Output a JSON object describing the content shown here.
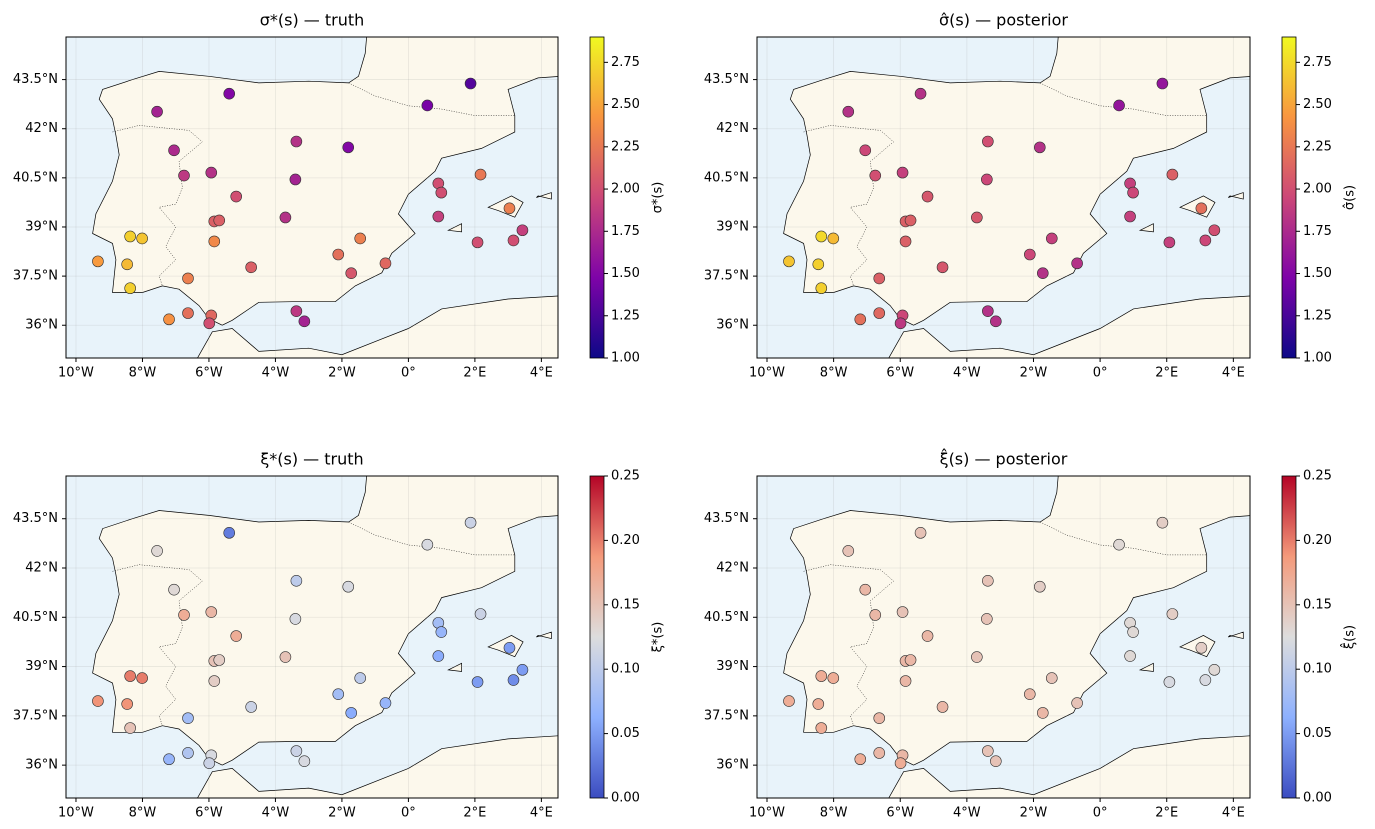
{
  "chart_data": [
    {
      "type": "scatter",
      "title": "σ*(s) — truth",
      "colorbar_label": "σ*(s)",
      "colormap": "plasma",
      "grid": true,
      "xlim": [
        -10.3,
        4.5
      ],
      "ylim": [
        35,
        44.8
      ],
      "xticks": [
        {
          "value": -10,
          "label": "10°W"
        },
        {
          "value": -8,
          "label": "8°W"
        },
        {
          "value": -6,
          "label": "6°W"
        },
        {
          "value": -4,
          "label": "4°W"
        },
        {
          "value": -2,
          "label": "2°W"
        },
        {
          "value": 0,
          "label": "0°"
        },
        {
          "value": 2,
          "label": "2°E"
        },
        {
          "value": 4,
          "label": "4°E"
        }
      ],
      "yticks": [
        {
          "value": 36,
          "label": "36°N"
        },
        {
          "value": 37.5,
          "label": "37.5°N"
        },
        {
          "value": 39,
          "label": "39°N"
        },
        {
          "value": 40.5,
          "label": "40.5°N"
        },
        {
          "value": 42,
          "label": "42°N"
        },
        {
          "value": 43.5,
          "label": "43.5°N"
        }
      ],
      "clim": [
        1,
        2.9
      ],
      "cticks": [
        {
          "value": 1,
          "label": "1.00"
        },
        {
          "value": 1.25,
          "label": "1.25"
        },
        {
          "value": 1.5,
          "label": "1.50"
        },
        {
          "value": 1.75,
          "label": "1.75"
        },
        {
          "value": 2,
          "label": "2.00"
        },
        {
          "value": 2.25,
          "label": "2.25"
        },
        {
          "value": 2.5,
          "label": "2.50"
        },
        {
          "value": 2.75,
          "label": "2.75"
        }
      ],
      "x": [
        1.87,
        -5.39,
        0.57,
        -7.56,
        -3.37,
        -1.81,
        -7.05,
        -6.75,
        -5.93,
        -3.4,
        2.17,
        -5.18,
        0.9,
        0.99,
        0.9,
        -3.7,
        -5.84,
        -5.69,
        3.04,
        -8.37,
        -8.01,
        -5.84,
        -1.45,
        3.43,
        3.16,
        2.08,
        -2.11,
        -9.34,
        -8.46,
        -4.73,
        -0.69,
        -1.72,
        -6.63,
        -8.37,
        -7.2,
        -6.63,
        -5.93,
        -5.99,
        -3.37,
        -3.13
      ],
      "y": [
        43.38,
        43.07,
        42.71,
        42.52,
        41.61,
        41.43,
        41.34,
        40.57,
        40.66,
        40.45,
        40.6,
        39.93,
        40.33,
        40.05,
        39.32,
        39.29,
        39.17,
        39.2,
        39.57,
        38.71,
        38.65,
        38.56,
        38.65,
        38.9,
        38.59,
        38.53,
        38.16,
        37.95,
        37.86,
        37.77,
        37.89,
        37.59,
        37.43,
        37.13,
        36.18,
        36.37,
        36.3,
        36.06,
        36.43,
        36.12
      ],
      "values": [
        1.3,
        1.5,
        1.45,
        1.7,
        1.8,
        1.5,
        1.75,
        1.85,
        1.8,
        1.7,
        2.25,
        2.0,
        2.0,
        2.0,
        1.9,
        1.8,
        2.1,
        2.1,
        2.3,
        2.7,
        2.65,
        2.35,
        2.3,
        1.9,
        2.0,
        2.0,
        2.2,
        2.45,
        2.6,
        2.1,
        2.15,
        2.05,
        2.3,
        2.7,
        2.4,
        2.2,
        2.15,
        2.0,
        1.85,
        1.7
      ]
    },
    {
      "type": "scatter",
      "title": "σ̂(s) — posterior",
      "colorbar_label": "σ̂(s)",
      "colormap": "plasma",
      "grid": true,
      "xlim": [
        -10.3,
        4.5
      ],
      "ylim": [
        35,
        44.8
      ],
      "xticks": [
        {
          "value": -10,
          "label": "10°W"
        },
        {
          "value": -8,
          "label": "8°W"
        },
        {
          "value": -6,
          "label": "6°W"
        },
        {
          "value": -4,
          "label": "4°W"
        },
        {
          "value": -2,
          "label": "2°W"
        },
        {
          "value": 0,
          "label": "0°"
        },
        {
          "value": 2,
          "label": "2°E"
        },
        {
          "value": 4,
          "label": "4°E"
        }
      ],
      "yticks": [
        {
          "value": 36,
          "label": "36°N"
        },
        {
          "value": 37.5,
          "label": "37.5°N"
        },
        {
          "value": 39,
          "label": "39°N"
        },
        {
          "value": 40.5,
          "label": "40.5°N"
        },
        {
          "value": 42,
          "label": "42°N"
        },
        {
          "value": 43.5,
          "label": "43.5°N"
        }
      ],
      "clim": [
        1,
        2.9
      ],
      "cticks": [
        {
          "value": 1,
          "label": "1.00"
        },
        {
          "value": 1.25,
          "label": "1.25"
        },
        {
          "value": 1.5,
          "label": "1.50"
        },
        {
          "value": 1.75,
          "label": "1.75"
        },
        {
          "value": 2,
          "label": "2.00"
        },
        {
          "value": 2.25,
          "label": "2.25"
        },
        {
          "value": 2.5,
          "label": "2.50"
        },
        {
          "value": 2.75,
          "label": "2.75"
        }
      ],
      "x": [
        1.87,
        -5.39,
        0.57,
        -7.56,
        -3.37,
        -1.81,
        -7.05,
        -6.75,
        -5.93,
        -3.4,
        2.17,
        -5.18,
        0.9,
        0.99,
        0.9,
        -3.7,
        -5.84,
        -5.69,
        3.04,
        -8.37,
        -8.01,
        -5.84,
        -1.45,
        3.43,
        3.16,
        2.08,
        -2.11,
        -9.34,
        -8.46,
        -4.73,
        -0.69,
        -1.72,
        -6.63,
        -8.37,
        -7.2,
        -6.63,
        -5.93,
        -5.99,
        -3.37,
        -3.13
      ],
      "y": [
        43.38,
        43.07,
        42.71,
        42.52,
        41.61,
        41.43,
        41.34,
        40.57,
        40.66,
        40.45,
        40.6,
        39.93,
        40.33,
        40.05,
        39.32,
        39.29,
        39.17,
        39.2,
        39.57,
        38.71,
        38.65,
        38.56,
        38.65,
        38.9,
        38.59,
        38.53,
        38.16,
        37.95,
        37.86,
        37.77,
        37.89,
        37.59,
        37.43,
        37.13,
        36.18,
        36.37,
        36.3,
        36.06,
        36.43,
        36.12
      ],
      "values": [
        1.6,
        1.8,
        1.6,
        1.8,
        2.0,
        1.8,
        1.95,
        2.0,
        1.9,
        1.95,
        2.1,
        2.05,
        1.9,
        1.95,
        1.9,
        2.05,
        2.1,
        2.1,
        2.2,
        2.75,
        2.6,
        2.1,
        1.9,
        2.0,
        1.95,
        1.9,
        1.95,
        2.65,
        2.7,
        2.05,
        1.8,
        1.8,
        2.1,
        2.7,
        2.2,
        2.15,
        1.95,
        1.85,
        1.8,
        1.8
      ]
    },
    {
      "type": "scatter",
      "title": "ξ*(s) — truth",
      "colorbar_label": "ξ*(s)",
      "colormap": "coolwarm",
      "grid": true,
      "xlim": [
        -10.3,
        4.5
      ],
      "ylim": [
        35,
        44.8
      ],
      "xticks": [
        {
          "value": -10,
          "label": "10°W"
        },
        {
          "value": -8,
          "label": "8°W"
        },
        {
          "value": -6,
          "label": "6°W"
        },
        {
          "value": -4,
          "label": "4°W"
        },
        {
          "value": -2,
          "label": "2°W"
        },
        {
          "value": 0,
          "label": "0°"
        },
        {
          "value": 2,
          "label": "2°E"
        },
        {
          "value": 4,
          "label": "4°E"
        }
      ],
      "yticks": [
        {
          "value": 36,
          "label": "36°N"
        },
        {
          "value": 37.5,
          "label": "37.5°N"
        },
        {
          "value": 39,
          "label": "39°N"
        },
        {
          "value": 40.5,
          "label": "40.5°N"
        },
        {
          "value": 42,
          "label": "42°N"
        },
        {
          "value": 43.5,
          "label": "43.5°N"
        }
      ],
      "clim": [
        0,
        0.25
      ],
      "cticks": [
        {
          "value": 0,
          "label": "0.00"
        },
        {
          "value": 0.05,
          "label": "0.05"
        },
        {
          "value": 0.1,
          "label": "0.10"
        },
        {
          "value": 0.15,
          "label": "0.15"
        },
        {
          "value": 0.2,
          "label": "0.20"
        },
        {
          "value": 0.25,
          "label": "0.25"
        }
      ],
      "x": [
        1.87,
        -5.39,
        0.57,
        -7.56,
        -3.37,
        -1.81,
        -7.05,
        -6.75,
        -5.93,
        -3.4,
        2.17,
        -5.18,
        0.9,
        0.99,
        0.9,
        -3.7,
        -5.84,
        -5.69,
        3.04,
        -8.37,
        -8.01,
        -5.84,
        -1.45,
        3.43,
        3.16,
        2.08,
        -2.11,
        -9.34,
        -8.46,
        -4.73,
        -0.69,
        -1.72,
        -6.63,
        -8.37,
        -7.2,
        -6.63,
        -5.93,
        -5.99,
        -3.37,
        -3.13
      ],
      "y": [
        43.38,
        43.07,
        42.71,
        42.52,
        41.61,
        41.43,
        41.34,
        40.57,
        40.66,
        40.45,
        40.6,
        39.93,
        40.33,
        40.05,
        39.32,
        39.29,
        39.17,
        39.2,
        39.57,
        38.71,
        38.65,
        38.56,
        38.65,
        38.9,
        38.59,
        38.53,
        38.16,
        37.95,
        37.86,
        37.77,
        37.89,
        37.59,
        37.43,
        37.13,
        36.18,
        36.37,
        36.3,
        36.06,
        36.43,
        36.12
      ],
      "values": [
        0.11,
        0.03,
        0.12,
        0.13,
        0.1,
        0.12,
        0.13,
        0.17,
        0.16,
        0.12,
        0.11,
        0.17,
        0.08,
        0.07,
        0.06,
        0.15,
        0.15,
        0.14,
        0.05,
        0.2,
        0.2,
        0.14,
        0.1,
        0.05,
        0.04,
        0.05,
        0.08,
        0.19,
        0.19,
        0.11,
        0.07,
        0.06,
        0.08,
        0.15,
        0.07,
        0.09,
        0.12,
        0.11,
        0.11,
        0.12
      ]
    },
    {
      "type": "scatter",
      "title": "ξ̂(s) — posterior",
      "colorbar_label": "ξ̂(s)",
      "colormap": "coolwarm",
      "grid": true,
      "xlim": [
        -10.3,
        4.5
      ],
      "ylim": [
        35,
        44.8
      ],
      "xticks": [
        {
          "value": -10,
          "label": "10°W"
        },
        {
          "value": -8,
          "label": "8°W"
        },
        {
          "value": -6,
          "label": "6°W"
        },
        {
          "value": -4,
          "label": "4°W"
        },
        {
          "value": -2,
          "label": "2°W"
        },
        {
          "value": 0,
          "label": "0°"
        },
        {
          "value": 2,
          "label": "2°E"
        },
        {
          "value": 4,
          "label": "4°E"
        }
      ],
      "yticks": [
        {
          "value": 36,
          "label": "36°N"
        },
        {
          "value": 37.5,
          "label": "37.5°N"
        },
        {
          "value": 39,
          "label": "39°N"
        },
        {
          "value": 40.5,
          "label": "40.5°N"
        },
        {
          "value": 42,
          "label": "42°N"
        },
        {
          "value": 43.5,
          "label": "43.5°N"
        }
      ],
      "clim": [
        0,
        0.25
      ],
      "cticks": [
        {
          "value": 0,
          "label": "0.00"
        },
        {
          "value": 0.05,
          "label": "0.05"
        },
        {
          "value": 0.1,
          "label": "0.10"
        },
        {
          "value": 0.15,
          "label": "0.15"
        },
        {
          "value": 0.2,
          "label": "0.20"
        },
        {
          "value": 0.25,
          "label": "0.25"
        }
      ],
      "x": [
        1.87,
        -5.39,
        0.57,
        -7.56,
        -3.37,
        -1.81,
        -7.05,
        -6.75,
        -5.93,
        -3.4,
        2.17,
        -5.18,
        0.9,
        0.99,
        0.9,
        -3.7,
        -5.84,
        -5.69,
        3.04,
        -8.37,
        -8.01,
        -5.84,
        -1.45,
        3.43,
        3.16,
        2.08,
        -2.11,
        -9.34,
        -8.46,
        -4.73,
        -0.69,
        -1.72,
        -6.63,
        -8.37,
        -7.2,
        -6.63,
        -5.93,
        -5.99,
        -3.37,
        -3.13
      ],
      "y": [
        43.38,
        43.07,
        42.71,
        42.52,
        41.61,
        41.43,
        41.34,
        40.57,
        40.66,
        40.45,
        40.6,
        39.93,
        40.33,
        40.05,
        39.32,
        39.29,
        39.17,
        39.2,
        39.57,
        38.71,
        38.65,
        38.56,
        38.65,
        38.9,
        38.59,
        38.53,
        38.16,
        37.95,
        37.86,
        37.77,
        37.89,
        37.59,
        37.43,
        37.13,
        36.18,
        36.37,
        36.3,
        36.06,
        36.43,
        36.12
      ],
      "values": [
        0.14,
        0.15,
        0.13,
        0.15,
        0.15,
        0.14,
        0.16,
        0.16,
        0.15,
        0.15,
        0.14,
        0.16,
        0.13,
        0.13,
        0.13,
        0.15,
        0.16,
        0.16,
        0.14,
        0.17,
        0.17,
        0.16,
        0.15,
        0.13,
        0.12,
        0.12,
        0.16,
        0.17,
        0.17,
        0.16,
        0.15,
        0.16,
        0.16,
        0.17,
        0.17,
        0.16,
        0.16,
        0.17,
        0.15,
        0.15
      ]
    }
  ]
}
